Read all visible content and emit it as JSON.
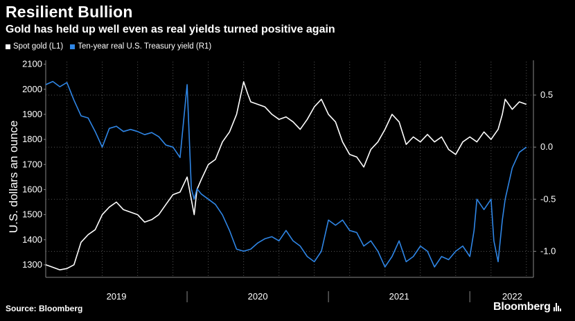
{
  "header": {
    "title": "Resilient Bullion",
    "subtitle": "Gold has held up well even as real yields turned positive again"
  },
  "footer": {
    "source": "Source: Bloomberg",
    "brand": "Bloomberg"
  },
  "colors": {
    "background": "#000000",
    "gold_series": "#ffffff",
    "yield_series": "#2f86e6",
    "grid": "#555555"
  },
  "chart_data": {
    "type": "line",
    "title": "Resilient Bullion",
    "subtitle": "Gold has held up well even as real yields turned positive again",
    "ylabel_left": "U.S. dollars an ounce",
    "ylabel_right": "",
    "ylim_left": [
      1250,
      2110
    ],
    "ylim_right": [
      -1.25,
      0.82
    ],
    "yticks_left": [
      1300,
      1400,
      1500,
      1600,
      1700,
      1800,
      1900,
      2000,
      2100
    ],
    "yticks_right": [
      -1.0,
      -0.5,
      0.0,
      0.5
    ],
    "ytick_labels_right": [
      "-1.0",
      "-0.5",
      "0.0",
      "0.5"
    ],
    "xlim": [
      2018.85,
      2022.3
    ],
    "x_year_labels": [
      "2019",
      "2020",
      "2021",
      "2022"
    ],
    "x_year_label_positions": [
      2019.35,
      2020.35,
      2021.35,
      2022.15
    ],
    "x_separators": [
      2019.85,
      2020.85,
      2021.85
    ],
    "grid": true,
    "legend_position": "top-left",
    "series": [
      {
        "name": "Spot gold (L1)",
        "axis": "left",
        "x": [
          2018.85,
          2018.9,
          2018.95,
          2019.0,
          2019.05,
          2019.1,
          2019.15,
          2019.2,
          2019.25,
          2019.3,
          2019.35,
          2019.4,
          2019.45,
          2019.5,
          2019.55,
          2019.6,
          2019.65,
          2019.7,
          2019.75,
          2019.8,
          2019.85,
          2019.88,
          2019.9,
          2019.92,
          2019.95,
          2020.0,
          2020.05,
          2020.1,
          2020.15,
          2020.2,
          2020.25,
          2020.28,
          2020.3,
          2020.35,
          2020.4,
          2020.45,
          2020.5,
          2020.55,
          2020.6,
          2020.65,
          2020.7,
          2020.75,
          2020.8,
          2020.85,
          2020.9,
          2020.95,
          2021.0,
          2021.05,
          2021.1,
          2021.15,
          2021.2,
          2021.25,
          2021.3,
          2021.35,
          2021.4,
          2021.45,
          2021.5,
          2021.55,
          2021.6,
          2021.65,
          2021.7,
          2021.75,
          2021.8,
          2021.85,
          2021.9,
          2021.95,
          2022.0,
          2022.05,
          2022.08,
          2022.1,
          2022.15,
          2022.2,
          2022.25
        ],
        "values": [
          1300,
          1290,
          1280,
          1285,
          1300,
          1390,
          1420,
          1440,
          1500,
          1530,
          1550,
          1520,
          1510,
          1500,
          1470,
          1480,
          1500,
          1540,
          1580,
          1590,
          1650,
          1560,
          1500,
          1600,
          1640,
          1700,
          1720,
          1790,
          1830,
          1900,
          2030,
          1980,
          1950,
          1940,
          1930,
          1900,
          1880,
          1890,
          1870,
          1840,
          1880,
          1930,
          1960,
          1900,
          1870,
          1790,
          1740,
          1730,
          1690,
          1760,
          1790,
          1840,
          1900,
          1870,
          1780,
          1810,
          1790,
          1820,
          1790,
          1810,
          1760,
          1740,
          1790,
          1810,
          1790,
          1830,
          1800,
          1840,
          1900,
          1960,
          1920,
          1950,
          1940
        ]
      },
      {
        "name": "Ten-year real U.S. Treasury yield (R1)",
        "axis": "right",
        "x": [
          2018.85,
          2018.9,
          2018.95,
          2019.0,
          2019.05,
          2019.1,
          2019.15,
          2019.2,
          2019.25,
          2019.3,
          2019.35,
          2019.4,
          2019.45,
          2019.5,
          2019.55,
          2019.6,
          2019.65,
          2019.7,
          2019.75,
          2019.8,
          2019.85,
          2019.88,
          2019.9,
          2019.92,
          2019.95,
          2020.0,
          2020.05,
          2020.1,
          2020.15,
          2020.2,
          2020.25,
          2020.3,
          2020.35,
          2020.4,
          2020.45,
          2020.5,
          2020.55,
          2020.6,
          2020.65,
          2020.7,
          2020.75,
          2020.8,
          2020.85,
          2020.9,
          2020.95,
          2021.0,
          2021.05,
          2021.1,
          2021.15,
          2021.2,
          2021.25,
          2021.3,
          2021.35,
          2021.4,
          2021.45,
          2021.5,
          2021.55,
          2021.6,
          2021.65,
          2021.7,
          2021.75,
          2021.8,
          2021.85,
          2021.88,
          2021.9,
          2021.95,
          2022.0,
          2022.02,
          2022.05,
          2022.08,
          2022.1,
          2022.15,
          2022.2,
          2022.25
        ],
        "values": [
          0.6,
          0.63,
          0.58,
          0.62,
          0.45,
          0.3,
          0.28,
          0.15,
          0.0,
          0.18,
          0.2,
          0.15,
          0.17,
          0.15,
          0.12,
          0.14,
          0.1,
          0.02,
          0.0,
          -0.1,
          0.6,
          -0.4,
          -0.5,
          -0.4,
          -0.45,
          -0.5,
          -0.55,
          -0.65,
          -0.8,
          -0.98,
          -1.0,
          -0.98,
          -0.92,
          -0.88,
          -0.86,
          -0.9,
          -0.8,
          -0.9,
          -0.95,
          -1.05,
          -1.1,
          -1.0,
          -0.7,
          -0.75,
          -0.7,
          -0.8,
          -0.82,
          -0.95,
          -0.9,
          -1.0,
          -1.15,
          -1.05,
          -0.9,
          -1.1,
          -1.05,
          -0.95,
          -1.0,
          -1.15,
          -1.05,
          -1.08,
          -1.0,
          -0.95,
          -1.05,
          -0.8,
          -0.5,
          -0.6,
          -0.5,
          -0.9,
          -1.1,
          -0.7,
          -0.5,
          -0.2,
          -0.05,
          0.0
        ]
      }
    ]
  }
}
